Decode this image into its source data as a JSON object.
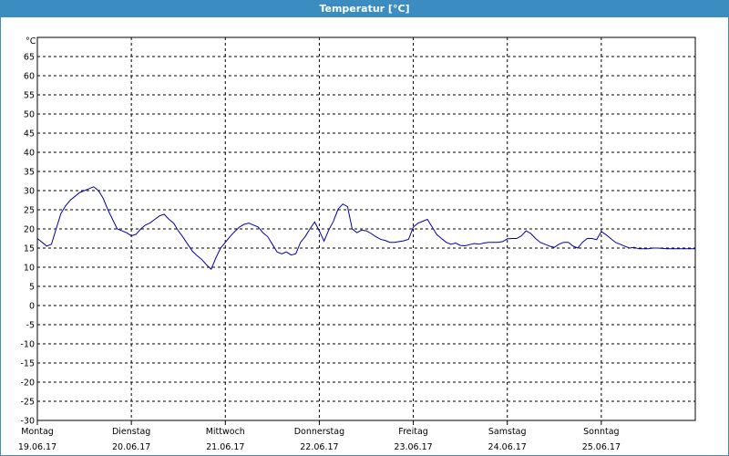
{
  "window": {
    "title": "Temperatur [°C]"
  },
  "chart_data": {
    "type": "line",
    "title": "Temperatur [°C]",
    "ylabel": "°C",
    "xlabel": "",
    "ylim": [
      -30,
      70
    ],
    "yticks": [
      65,
      60,
      55,
      50,
      45,
      40,
      35,
      30,
      25,
      20,
      15,
      10,
      5,
      0,
      -5,
      -10,
      -15,
      -20,
      -25,
      -30
    ],
    "xlim": [
      0,
      7
    ],
    "grid": true,
    "days": [
      {
        "weekday": "Montag",
        "date": "19.06.17"
      },
      {
        "weekday": "Dienstag",
        "date": "20.06.17"
      },
      {
        "weekday": "Mittwoch",
        "date": "21.06.17"
      },
      {
        "weekday": "Donnerstag",
        "date": "22.06.17"
      },
      {
        "weekday": "Freitag",
        "date": "23.06.17"
      },
      {
        "weekday": "Samstag",
        "date": "24.06.17"
      },
      {
        "weekday": "Sonntag",
        "date": "25.06.17"
      }
    ],
    "series": [
      {
        "color": "#0000aa",
        "x": [
          0,
          0.05,
          0.1,
          0.15,
          0.2,
          0.25,
          0.3,
          0.35,
          0.4,
          0.45,
          0.5,
          0.55,
          0.6,
          0.65,
          0.7,
          0.75,
          0.8,
          0.85,
          0.9,
          0.95,
          1.0,
          1.05,
          1.1,
          1.15,
          1.2,
          1.25,
          1.3,
          1.35,
          1.4,
          1.45,
          1.5,
          1.55,
          1.6,
          1.65,
          1.7,
          1.75,
          1.8,
          1.85,
          1.9,
          1.95,
          2.0,
          2.05,
          2.1,
          2.15,
          2.2,
          2.25,
          2.3,
          2.35,
          2.4,
          2.45,
          2.5,
          2.55,
          2.6,
          2.65,
          2.7,
          2.75,
          2.8,
          2.85,
          2.9,
          2.95,
          3.0,
          3.05,
          3.1,
          3.15,
          3.2,
          3.25,
          3.3,
          3.35,
          3.4,
          3.45,
          3.5,
          3.55,
          3.6,
          3.65,
          3.7,
          3.75,
          3.8,
          3.85,
          3.9,
          3.95,
          4.0,
          4.05,
          4.1,
          4.15,
          4.2,
          4.25,
          4.3,
          4.35,
          4.4,
          4.45,
          4.5,
          4.55,
          4.6,
          4.65,
          4.7,
          4.75,
          4.8,
          4.85,
          4.9,
          4.95,
          5.0,
          5.05,
          5.1,
          5.15,
          5.2,
          5.25,
          5.3,
          5.35,
          5.4,
          5.45,
          5.5,
          5.55,
          5.6,
          5.65,
          5.7,
          5.75,
          5.8,
          5.85,
          5.9,
          5.95,
          6.0,
          6.05,
          6.1,
          6.15,
          6.2,
          6.25,
          6.3,
          6.35,
          6.4,
          6.45,
          6.5,
          6.55,
          6.6,
          6.65,
          6.7,
          6.75,
          6.8,
          6.85,
          6.9,
          6.95,
          7.0
        ],
        "values": [
          17.5,
          16.5,
          15.5,
          16,
          20,
          24,
          26,
          27.5,
          28.5,
          29.5,
          30,
          30.5,
          31,
          30,
          28,
          25,
          22.5,
          20,
          19.5,
          19,
          18.2,
          18.6,
          20,
          21,
          21.6,
          22.5,
          23.4,
          23.8,
          22.5,
          21.5,
          19.5,
          17.8,
          16,
          14.2,
          13,
          12,
          10.6,
          9.5,
          12.5,
          15,
          16.5,
          18,
          19.3,
          20.5,
          21.2,
          21.5,
          21,
          20.5,
          19,
          18,
          16,
          14,
          13.5,
          14,
          13.2,
          13.5,
          16.5,
          18,
          20,
          21.8,
          19.5,
          16.8,
          19.7,
          22,
          25.2,
          26.5,
          25.8,
          20,
          19,
          19.7,
          19.5,
          18.8,
          18,
          17.3,
          17,
          16.5,
          16.5,
          16.7,
          16.9,
          17.3,
          20.5,
          21.5,
          22,
          22.5,
          20.5,
          18.5,
          17.5,
          16.5,
          16,
          16.3,
          15.7,
          15.6,
          15.9,
          16.2,
          16,
          16.3,
          16.5,
          16.5,
          16.5,
          16.7,
          17.4,
          17.5,
          17.5,
          18.2,
          19.5,
          18.8,
          17.5,
          16.5,
          16,
          15.5,
          15.2,
          16,
          16.5,
          16.5,
          15.5,
          15,
          16.5,
          17.5,
          17.5,
          17.2,
          19.3,
          18.5,
          17.5,
          16.5,
          16,
          15.5,
          15,
          15.2,
          14.8,
          14.8,
          14.8,
          15,
          15,
          14.9,
          14.8,
          14.8,
          14.8,
          14.8,
          14.8,
          14.8,
          14.8
        ]
      }
    ]
  }
}
